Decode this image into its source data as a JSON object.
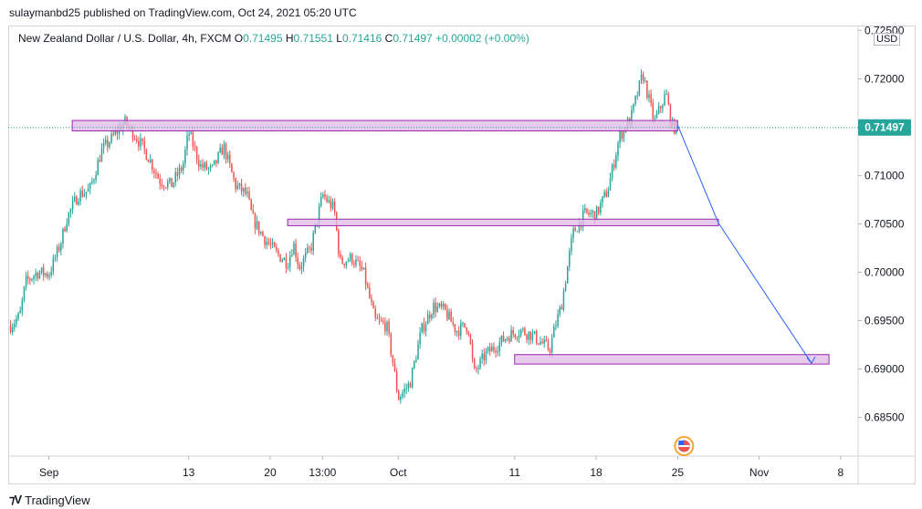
{
  "header": {
    "published": "sulaymanbd25 published on TradingView.com, Oct 24, 2021 05:20 UTC"
  },
  "legend": {
    "symbol": "New Zealand Dollar / U.S. Dollar, 4h, FXCM",
    "open_label": "O",
    "open": "0.71495",
    "high_label": "H",
    "high": "0.71551",
    "low_label": "L",
    "low": "0.71416",
    "close_label": "C",
    "close": "0.71497",
    "change": "+0.00002 (+0.00%)"
  },
  "currency": "USD",
  "price_tag": "0.71497",
  "footer": {
    "brand": "TradingView",
    "logo": "tradingview-logo-icon"
  },
  "event_icon": "us-flag-icon",
  "colors": {
    "up": "#26a69a",
    "down": "#ef5350",
    "zone_fill": "#e1bee7",
    "zone_border": "#9c27b0",
    "arrow": "#2962ff",
    "price_line": "#26a69a"
  },
  "chart_data": {
    "type": "candlestick",
    "ylim": [
      0.681,
      0.7255
    ],
    "y_ticks": [
      "0.72500",
      "0.72000",
      "0.71500",
      "0.71000",
      "0.70500",
      "0.70000",
      "0.69500",
      "0.69000",
      "0.68500"
    ],
    "x_ticks": [
      {
        "label": "Sep",
        "day": 1
      },
      {
        "label": "13",
        "day": 13
      },
      {
        "label": "20",
        "day": 20
      },
      {
        "label": "13:00",
        "day": 24.5
      },
      {
        "label": "Oct",
        "day": 31
      },
      {
        "label": "11",
        "day": 41
      },
      {
        "label": "18",
        "day": 48
      },
      {
        "label": "25",
        "day": 55
      },
      {
        "label": "Nov",
        "day": 62
      },
      {
        "label": "8",
        "day": 69
      }
    ],
    "xlim": [
      -2.5,
      70.5
    ],
    "last_price": 0.71497,
    "anchors": [
      [
        -2.3,
        0.6945
      ],
      [
        -1.5,
        0.6955
      ],
      [
        -1.0,
        0.699
      ],
      [
        0.0,
        0.7
      ],
      [
        1.0,
        0.6998
      ],
      [
        2.0,
        0.703
      ],
      [
        2.5,
        0.7055
      ],
      [
        3.5,
        0.708
      ],
      [
        4.5,
        0.7085
      ],
      [
        5.5,
        0.7125
      ],
      [
        6.5,
        0.714
      ],
      [
        7.5,
        0.7155
      ],
      [
        8.5,
        0.714
      ],
      [
        9.5,
        0.712
      ],
      [
        10.5,
        0.7095
      ],
      [
        11.5,
        0.709
      ],
      [
        12.5,
        0.711
      ],
      [
        13.0,
        0.7145
      ],
      [
        14.0,
        0.711
      ],
      [
        15.0,
        0.7105
      ],
      [
        16.0,
        0.713
      ],
      [
        17.0,
        0.709
      ],
      [
        18.0,
        0.708
      ],
      [
        18.5,
        0.7055
      ],
      [
        19.5,
        0.7035
      ],
      [
        20.5,
        0.702
      ],
      [
        21.5,
        0.701
      ],
      [
        22.0,
        0.703
      ],
      [
        22.5,
        0.7005
      ],
      [
        23.5,
        0.7025
      ],
      [
        24.5,
        0.708
      ],
      [
        25.5,
        0.7065
      ],
      [
        26.0,
        0.701
      ],
      [
        27.0,
        0.7015
      ],
      [
        28.0,
        0.7
      ],
      [
        29.0,
        0.695
      ],
      [
        30.0,
        0.6945
      ],
      [
        30.5,
        0.691
      ],
      [
        31.0,
        0.687
      ],
      [
        32.0,
        0.6885
      ],
      [
        33.0,
        0.694
      ],
      [
        34.0,
        0.6965
      ],
      [
        35.0,
        0.696
      ],
      [
        36.0,
        0.694
      ],
      [
        37.0,
        0.6945
      ],
      [
        37.5,
        0.6895
      ],
      [
        38.5,
        0.6915
      ],
      [
        39.5,
        0.6925
      ],
      [
        40.5,
        0.6935
      ],
      [
        41.5,
        0.694
      ],
      [
        42.5,
        0.6935
      ],
      [
        43.5,
        0.6925
      ],
      [
        44.0,
        0.692
      ],
      [
        44.5,
        0.6945
      ],
      [
        45.0,
        0.6965
      ],
      [
        46.0,
        0.704
      ],
      [
        47.0,
        0.706
      ],
      [
        48.0,
        0.706
      ],
      [
        49.0,
        0.7085
      ],
      [
        50.0,
        0.714
      ],
      [
        51.0,
        0.716
      ],
      [
        52.0,
        0.7205
      ],
      [
        52.5,
        0.718
      ],
      [
        53.0,
        0.7155
      ],
      [
        53.5,
        0.717
      ],
      [
        54.0,
        0.7185
      ],
      [
        54.5,
        0.715
      ],
      [
        55.0,
        0.715
      ]
    ],
    "zones": [
      {
        "from": 3.0,
        "to": 55.0,
        "low": 0.7148,
        "high": 0.7155
      },
      {
        "from": 21.5,
        "to": 58.5,
        "low": 0.705,
        "high": 0.7053
      },
      {
        "from": 41.0,
        "to": 68.0,
        "low": 0.6907,
        "high": 0.6913
      }
    ],
    "projection": [
      {
        "day": 55.0,
        "price": 0.7152
      },
      {
        "day": 58.5,
        "price": 0.7051
      },
      {
        "day": 66.5,
        "price": 0.6906
      }
    ],
    "events": [
      {
        "day": 55.0
      }
    ]
  }
}
